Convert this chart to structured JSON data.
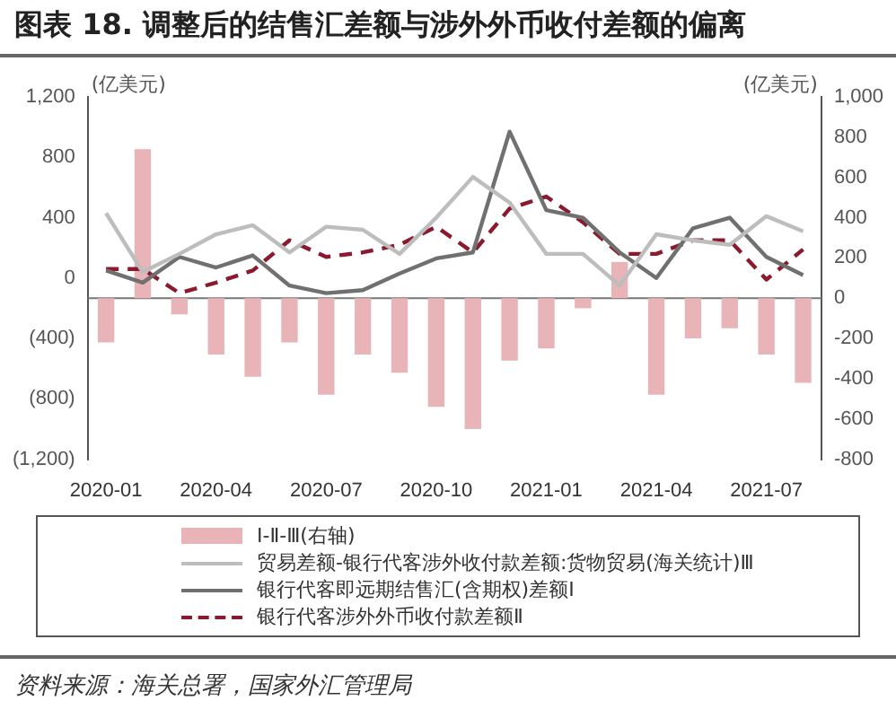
{
  "chart_data": {
    "type": "line",
    "title": "图表 18. 调整后的结售汇差额与涉外外币收付差额的偏离",
    "ylabel": "(亿美元)",
    "y2label": "(亿美元)",
    "categories": [
      "2020-01",
      null,
      null,
      "2020-04",
      null,
      null,
      "2020-07",
      null,
      null,
      "2020-10",
      null,
      null,
      "2021-01",
      null,
      null,
      "2021-04",
      null,
      null,
      "2021-07",
      null
    ],
    "series": [
      {
        "name": "Ⅰ-Ⅱ-Ⅲ(右轴)",
        "type": "bar",
        "axis": "y2",
        "color": "#e8b4b8",
        "values": [
          -220,
          740,
          -80,
          -280,
          -390,
          -220,
          -480,
          -280,
          -370,
          -540,
          -650,
          -310,
          -250,
          -50,
          180,
          -480,
          -200,
          -150,
          -280,
          -420
        ]
      },
      {
        "name": "贸易差额-银行代客涉外收付款差额:货物贸易(海关统计)Ⅲ",
        "color": "#bdbdbd",
        "values": [
          430,
          40,
          160,
          290,
          350,
          170,
          340,
          320,
          160,
          400,
          670,
          500,
          160,
          160,
          -50,
          290,
          250,
          220,
          410,
          310
        ]
      },
      {
        "name": "银行代客即远期结售汇(含期权)差额Ⅰ",
        "color": "#707070",
        "values": [
          50,
          -30,
          140,
          70,
          150,
          -50,
          -100,
          -80,
          30,
          130,
          170,
          970,
          450,
          400,
          170,
          0,
          330,
          400,
          140,
          20
        ]
      },
      {
        "name": "银行代客涉外外币收付款差额Ⅱ",
        "color": "#8b1a2e",
        "line_style": "dashed",
        "values": [
          60,
          60,
          -100,
          -30,
          50,
          250,
          140,
          170,
          220,
          340,
          170,
          460,
          540,
          370,
          160,
          160,
          250,
          250,
          -10,
          190
        ]
      }
    ],
    "ylim": [
      -1200,
      1200
    ],
    "yticks": [
      {
        "value": -1200,
        "label": "(1,200)"
      },
      {
        "value": -800,
        "label": "(800)"
      },
      {
        "value": -400,
        "label": "(400)"
      },
      0,
      400,
      800,
      {
        "value": 1200,
        "label": "1,200"
      }
    ],
    "y2lim": [
      -800,
      1000
    ],
    "y2ticks": [
      -800,
      -600,
      -400,
      -200,
      0,
      200,
      400,
      600,
      800,
      {
        "value": 1000,
        "label": "1,000"
      }
    ],
    "ref_lines": [
      {
        "axis": "y2",
        "value": 0,
        "color": "#777777"
      }
    ],
    "grid": false,
    "legend": "bottom",
    "marker": "none",
    "annotations": [
      "资料来源：海关总署，国家外汇管理局"
    ]
  }
}
